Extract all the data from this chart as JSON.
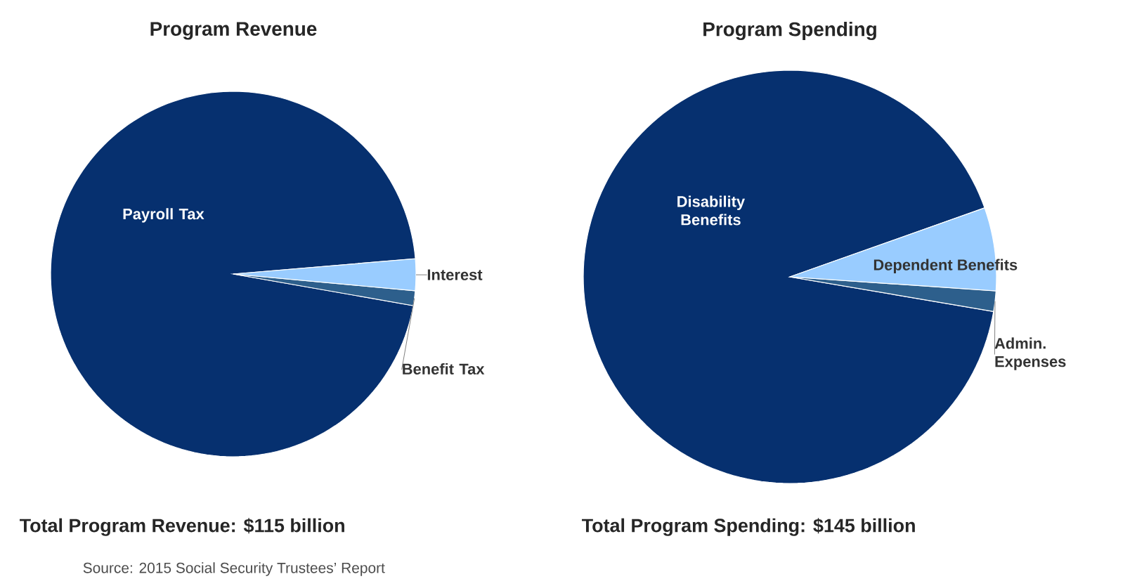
{
  "chart_data": [
    {
      "type": "pie",
      "title": "Program Revenue",
      "categories": [
        "Payroll Tax",
        "Benefit Tax",
        "Interest"
      ],
      "values": [
        95.9,
        1.3,
        2.8
      ],
      "colors": [
        "#06306f",
        "#2d5f8c",
        "#99ccff"
      ],
      "annotations": [
        "Total Program Revenue: $115 billion",
        "Source: 2015 Social Security Trustees’ Report"
      ]
    },
    {
      "type": "pie",
      "title": "Program Spending",
      "categories": [
        "Disability Benefits",
        "Admin. Expenses",
        "Dependent Benefits"
      ],
      "values": [
        91.9,
        1.6,
        6.5
      ],
      "colors": [
        "#06306f",
        "#2d5f8c",
        "#99ccff"
      ],
      "annotations": [
        "Total Program Spending: $145 billion"
      ]
    }
  ]
}
